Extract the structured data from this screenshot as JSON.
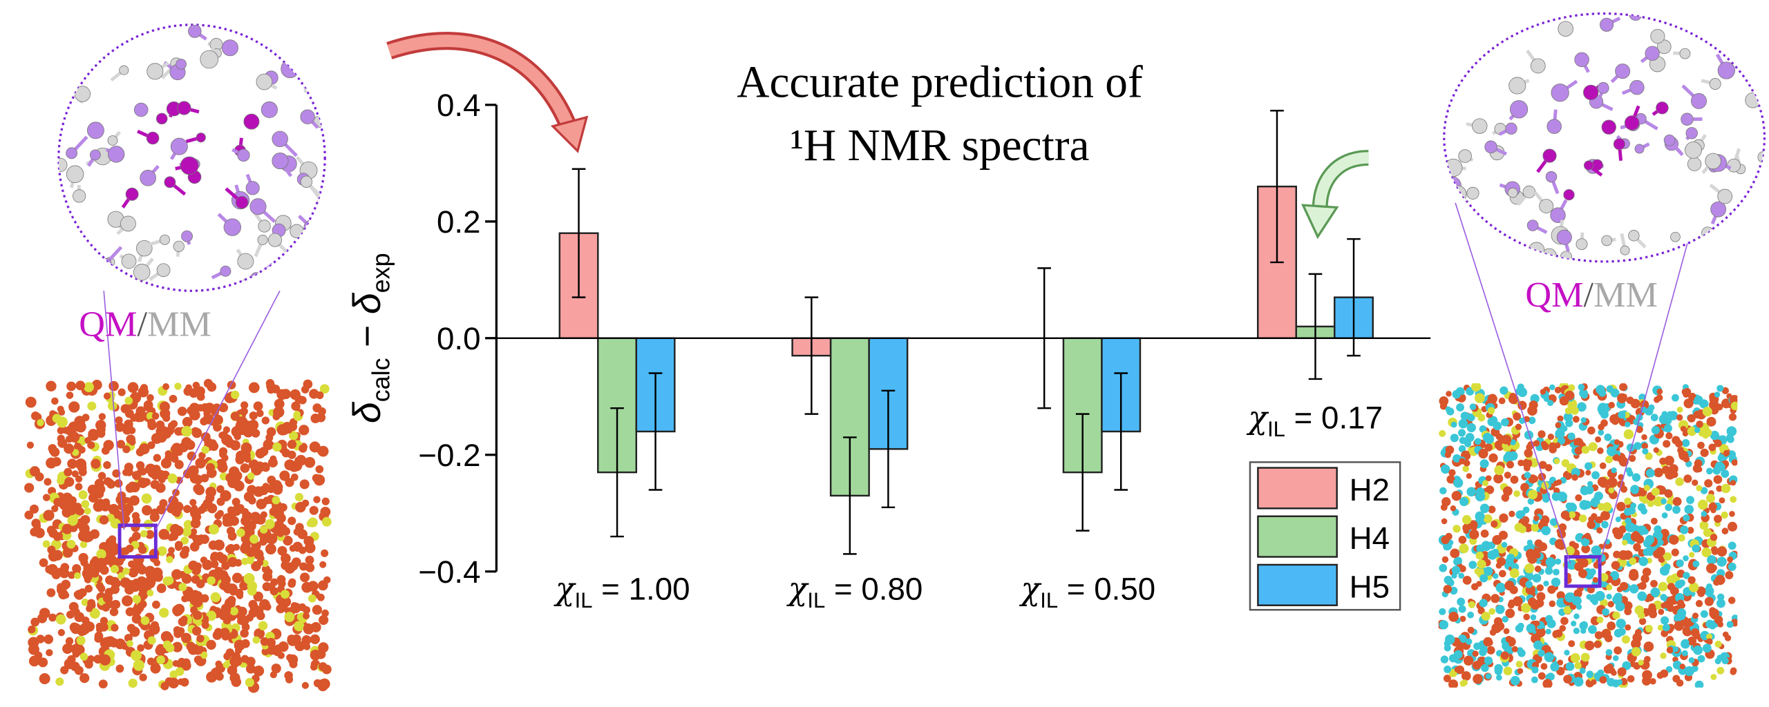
{
  "chart_data": {
    "type": "bar",
    "title_lines": [
      "Accurate prediction of",
      "¹H NMR spectra"
    ],
    "y_label": [
      "δ",
      "calc",
      " − ",
      "δ",
      "exp"
    ],
    "category_label": {
      "symbol": "χ",
      "subscript": "IL",
      "equals": " = "
    },
    "categories": [
      "1.00",
      "0.80",
      "0.50",
      "0.17"
    ],
    "series": [
      {
        "name": "H2",
        "color": "#f7a1a1",
        "values": [
          0.18,
          -0.03,
          0.0,
          0.26
        ],
        "errors": [
          0.11,
          0.1,
          0.12,
          0.13
        ]
      },
      {
        "name": "H4",
        "color": "#a2d89c",
        "values": [
          -0.23,
          -0.27,
          -0.23,
          0.02
        ],
        "errors": [
          0.11,
          0.1,
          0.1,
          0.09
        ]
      },
      {
        "name": "H5",
        "color": "#4cb9f6",
        "values": [
          -0.16,
          -0.19,
          -0.16,
          0.07
        ],
        "errors": [
          0.1,
          0.1,
          0.1,
          0.1
        ]
      }
    ],
    "ylim": [
      -0.4,
      0.4
    ],
    "yticks": [
      {
        "value": -0.4,
        "label": "−0.4"
      },
      {
        "value": -0.2,
        "label": "−0.2"
      },
      {
        "value": 0,
        "label": "0.0"
      },
      0.2,
      0.4
    ],
    "legend": "lower right"
  },
  "panels": {
    "qm": "QM",
    "slash": "/",
    "mm": "MM"
  }
}
